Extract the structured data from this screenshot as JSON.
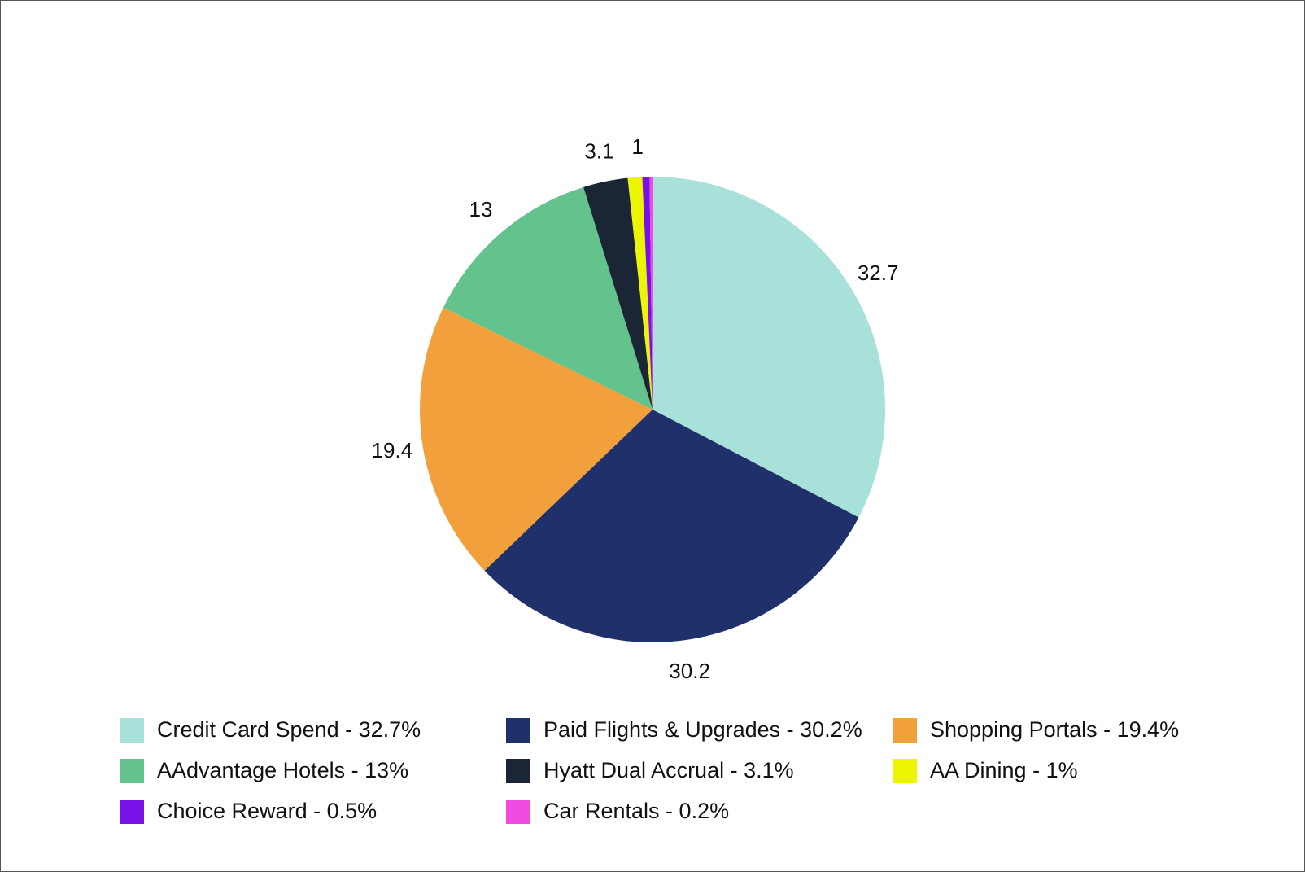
{
  "chart_data": {
    "type": "pie",
    "title": "",
    "start_angle": "top",
    "direction": "clockwise",
    "legend_position": "bottom",
    "slices": [
      {
        "label": "Credit Card Spend",
        "value": 32.7,
        "data_label": "32.7",
        "legend": "Credit Card Spend - 32.7%",
        "color": "#a8e1da"
      },
      {
        "label": "Paid Flights & Upgrades",
        "value": 30.2,
        "data_label": "30.2",
        "legend": "Paid Flights & Upgrades - 30.2%",
        "color": "#20306a"
      },
      {
        "label": "Shopping Portals",
        "value": 19.4,
        "data_label": "19.4",
        "legend": "Shopping Portals - 19.4%",
        "color": "#f2a03b"
      },
      {
        "label": "AAdvantage Hotels",
        "value": 13,
        "data_label": "13",
        "legend": "AAdvantage Hotels - 13%",
        "color": "#64c28c"
      },
      {
        "label": "Hyatt Dual Accrual",
        "value": 3.1,
        "data_label": "3.1",
        "legend": "Hyatt Dual Accrual - 3.1%",
        "color": "#1a2535"
      },
      {
        "label": "AA Dining",
        "value": 1,
        "data_label": "1",
        "legend": "AA Dining - 1%",
        "color": "#eef500"
      },
      {
        "label": "Choice Reward",
        "value": 0.5,
        "data_label": "",
        "legend": "Choice Reward - 0.5%",
        "color": "#7711e8"
      },
      {
        "label": "Car Rentals",
        "value": 0.2,
        "data_label": "",
        "legend": "Car Rentals - 0.2%",
        "color": "#ef4be0"
      }
    ]
  }
}
